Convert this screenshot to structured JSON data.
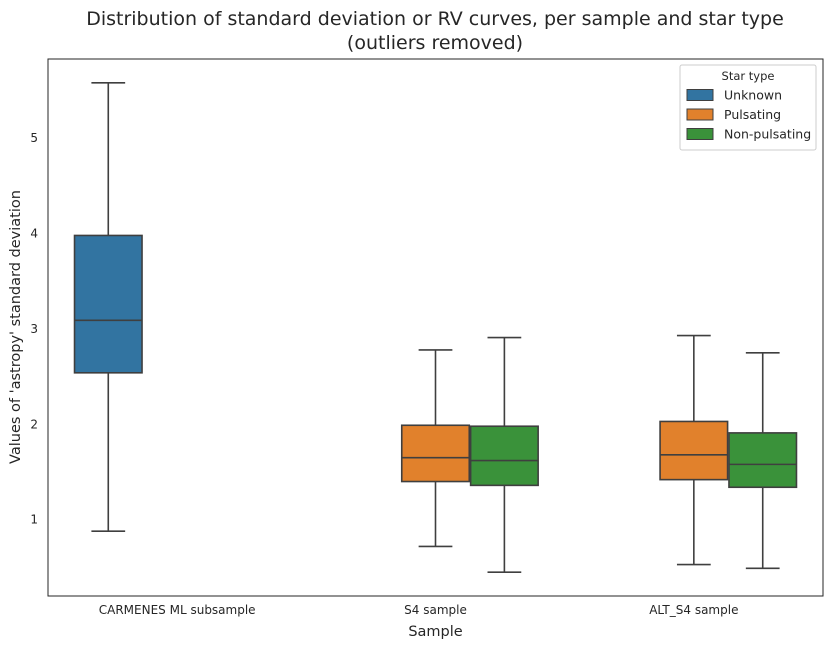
{
  "chart_data": {
    "type": "boxplot",
    "title_lines": [
      "Distribution of standard deviation or RV curves, per sample and star type",
      "(outliers removed)"
    ],
    "xlabel": "Sample",
    "ylabel": "Values of 'astropy' standard deviation",
    "ylim": [
      0.2,
      5.83
    ],
    "y_ticks": [
      1,
      2,
      3,
      4,
      5
    ],
    "grid": false,
    "categories": [
      "CARMENES ML subsample",
      "S4 sample",
      "ALT_S4 sample"
    ],
    "legend": {
      "title": "Star type",
      "placement": "top-right"
    },
    "series": [
      {
        "name": "Unknown",
        "color": "#3274a1",
        "boxes": [
          {
            "category": "CARMENES ML subsample",
            "whisker_low": 0.88,
            "q1": 2.54,
            "median": 3.09,
            "q3": 3.98,
            "whisker_high": 5.58
          }
        ]
      },
      {
        "name": "Pulsating",
        "color": "#e1812c",
        "boxes": [
          {
            "category": "S4 sample",
            "whisker_low": 0.72,
            "q1": 1.4,
            "median": 1.65,
            "q3": 1.99,
            "whisker_high": 2.78
          },
          {
            "category": "ALT_S4 sample",
            "whisker_low": 0.53,
            "q1": 1.42,
            "median": 1.68,
            "q3": 2.03,
            "whisker_high": 2.93
          }
        ]
      },
      {
        "name": "Non-pulsating",
        "color": "#3a923a",
        "boxes": [
          {
            "category": "S4 sample",
            "whisker_low": 0.45,
            "q1": 1.36,
            "median": 1.62,
            "q3": 1.98,
            "whisker_high": 2.91
          },
          {
            "category": "ALT_S4 sample",
            "whisker_low": 0.49,
            "q1": 1.34,
            "median": 1.58,
            "q3": 1.91,
            "whisker_high": 2.75
          }
        ]
      }
    ]
  }
}
